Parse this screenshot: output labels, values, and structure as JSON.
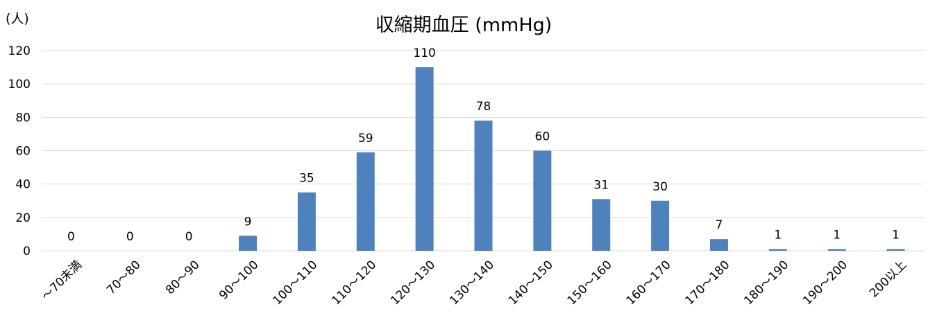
{
  "chart_data": {
    "type": "bar",
    "title": "収縮期血圧 (mmHg)",
    "ylabel": "(人)",
    "xlabel": "",
    "ylim": [
      0,
      120
    ],
    "yticks": [
      0,
      20,
      40,
      60,
      80,
      100,
      120
    ],
    "grid": true,
    "legend": "none",
    "categories": [
      "～70未満",
      "70～80",
      "80～90",
      "90～100",
      "100～110",
      "110～120",
      "120～130",
      "130～140",
      "140～150",
      "150～160",
      "160～170",
      "170～180",
      "180～190",
      "190～200",
      "200以上"
    ],
    "values": [
      0,
      0,
      0,
      9,
      35,
      59,
      110,
      78,
      60,
      31,
      30,
      7,
      1,
      1,
      1
    ],
    "bar_color": "#4F81BD",
    "grid_color": "#D9D9D9"
  }
}
